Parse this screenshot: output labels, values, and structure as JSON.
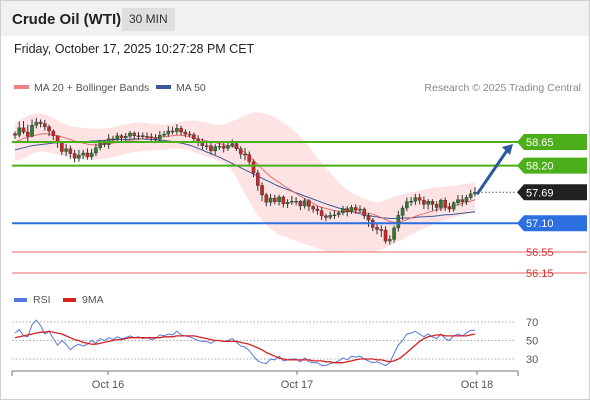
{
  "header": {
    "title": "Crude Oil (WTI)",
    "interval": "30 MIN"
  },
  "timestamp": "Friday, October 17, 2025 10:27:28 PM CET",
  "colors": {
    "bull_candle": "#2e7d32",
    "bear_candle": "#c62828",
    "ma20": "#e86a6a",
    "ma50": "#3a5a9c",
    "bollinger_fill": "#fde3e3",
    "resistance": "#4caf1a",
    "support_blue": "#2c6fe0",
    "support_red": "#e86a6a",
    "current_price_bg": "#222222",
    "arrow": "#2c5aa0",
    "rsi": "#5577dd",
    "rsi_ma": "#d62020"
  },
  "chart_data": [
    {
      "type": "candlestick",
      "legend": [
        {
          "label": "MA 20 + Bollinger Bands",
          "color": "#f08080"
        },
        {
          "label": "MA 50",
          "color": "#3a5a9c"
        }
      ],
      "attribution": "Research © 2025 Trading Central",
      "x_tick_labels": [
        "Oct 16",
        "Oct 17",
        "Oct 18"
      ],
      "ylim": [
        55.85,
        59.3
      ],
      "current_price": 57.69,
      "levels": [
        {
          "label": "58.65",
          "value": 58.65,
          "type": "resistance",
          "style": "green"
        },
        {
          "label": "58.20",
          "value": 58.2,
          "type": "resistance",
          "style": "green"
        },
        {
          "label": "57.10",
          "value": 57.1,
          "type": "support",
          "style": "blue"
        },
        {
          "label": "56.55",
          "value": 56.55,
          "type": "support",
          "style": "red"
        },
        {
          "label": "56.15",
          "value": 56.15,
          "type": "support",
          "style": "red"
        }
      ],
      "forecast_arrow": {
        "from": 57.65,
        "to": 58.65
      },
      "close": [
        58.78,
        58.92,
        58.84,
        58.76,
        58.97,
        59.03,
        59.0,
        58.94,
        58.86,
        58.77,
        58.63,
        58.47,
        58.52,
        58.43,
        58.34,
        58.4,
        58.44,
        58.37,
        58.44,
        58.54,
        58.63,
        58.6,
        58.71,
        58.7,
        58.77,
        58.73,
        58.76,
        58.82,
        58.77,
        58.77,
        58.76,
        58.75,
        58.73,
        58.7,
        58.78,
        58.8,
        58.86,
        58.85,
        58.91,
        58.84,
        58.8,
        58.79,
        58.71,
        58.65,
        58.58,
        58.58,
        58.48,
        58.56,
        58.57,
        58.53,
        58.58,
        58.62,
        58.52,
        58.42,
        58.41,
        58.27,
        58.06,
        57.82,
        57.64,
        57.5,
        57.58,
        57.51,
        57.6,
        57.47,
        57.5,
        57.52,
        57.52,
        57.43,
        57.53,
        57.42,
        57.37,
        57.34,
        57.24,
        57.21,
        57.25,
        57.26,
        57.3,
        57.38,
        57.32,
        57.4,
        57.35,
        57.37,
        57.24,
        57.16,
        57.02,
        56.98,
        56.97,
        56.76,
        56.79,
        57.01,
        57.25,
        57.39,
        57.51,
        57.52,
        57.59,
        57.54,
        57.46,
        57.52,
        57.46,
        57.4,
        57.54,
        57.41,
        57.37,
        57.49,
        57.55,
        57.51,
        57.59,
        57.66,
        57.69
      ],
      "high": [
        58.85,
        59.04,
        59.05,
        58.98,
        59.08,
        59.11,
        59.08,
        59.07,
        58.98,
        58.89,
        58.74,
        58.66,
        58.61,
        58.58,
        58.5,
        58.5,
        58.5,
        58.53,
        58.52,
        58.62,
        58.68,
        58.69,
        58.8,
        58.77,
        58.83,
        58.8,
        58.82,
        58.86,
        58.85,
        58.84,
        58.83,
        58.83,
        58.82,
        58.8,
        58.86,
        58.86,
        58.95,
        58.94,
        58.99,
        58.96,
        58.89,
        58.86,
        58.83,
        58.78,
        58.72,
        58.66,
        58.64,
        58.61,
        58.64,
        58.63,
        58.64,
        58.7,
        58.67,
        58.57,
        58.54,
        58.47,
        58.32,
        58.12,
        57.88,
        57.68,
        57.66,
        57.64,
        57.64,
        57.63,
        57.56,
        57.62,
        57.6,
        57.54,
        57.58,
        57.56,
        57.45,
        57.43,
        57.41,
        57.28,
        57.32,
        57.35,
        57.34,
        57.43,
        57.43,
        57.45,
        57.46,
        57.44,
        57.4,
        57.3,
        57.2,
        57.11,
        57.06,
        57.04,
        56.87,
        57.06,
        57.34,
        57.44,
        57.59,
        57.6,
        57.66,
        57.66,
        57.61,
        57.56,
        57.56,
        57.52,
        57.57,
        57.59,
        57.49,
        57.52,
        57.64,
        57.64,
        57.64,
        57.74,
        57.79
      ],
      "low": [
        58.71,
        58.74,
        58.8,
        58.67,
        58.74,
        58.91,
        58.93,
        58.87,
        58.76,
        58.69,
        58.54,
        58.4,
        58.38,
        58.33,
        58.26,
        58.27,
        58.32,
        58.31,
        58.31,
        58.38,
        58.49,
        58.55,
        58.52,
        58.64,
        58.66,
        58.64,
        58.67,
        58.7,
        58.7,
        58.69,
        58.7,
        58.72,
        58.64,
        58.63,
        58.64,
        58.74,
        58.75,
        58.79,
        58.79,
        58.78,
        58.74,
        58.74,
        58.66,
        58.57,
        58.51,
        58.5,
        58.41,
        58.4,
        58.5,
        58.45,
        58.48,
        58.54,
        58.48,
        58.33,
        58.3,
        58.18,
        57.98,
        57.72,
        57.52,
        57.42,
        57.43,
        57.46,
        57.44,
        57.4,
        57.39,
        57.45,
        57.44,
        57.35,
        57.38,
        57.33,
        57.3,
        57.26,
        57.16,
        57.14,
        57.17,
        57.18,
        57.21,
        57.25,
        57.23,
        57.28,
        57.28,
        57.3,
        57.18,
        57.03,
        56.95,
        56.89,
        56.84,
        56.71,
        56.69,
        56.73,
        56.94,
        57.16,
        57.33,
        57.43,
        57.45,
        57.46,
        57.37,
        57.36,
        57.34,
        57.32,
        57.33,
        57.33,
        57.31,
        57.32,
        57.44,
        57.42,
        57.45,
        57.55,
        57.61
      ],
      "ma20": [
        58.65,
        58.68,
        58.72,
        58.74,
        58.76,
        58.78,
        58.8,
        58.81,
        58.8,
        58.79,
        58.77,
        58.75,
        58.72,
        58.7,
        58.67,
        58.65,
        58.63,
        58.61,
        58.6,
        58.59,
        58.6,
        58.61,
        58.62,
        58.63,
        58.64,
        58.66,
        58.67,
        58.68,
        58.69,
        58.7,
        58.71,
        58.72,
        58.73,
        58.73,
        58.74,
        58.75,
        58.76,
        58.77,
        58.78,
        58.78,
        58.77,
        58.75,
        58.72,
        58.7,
        58.69,
        58.67,
        58.65,
        58.64,
        58.62,
        58.6,
        58.58,
        58.57,
        58.54,
        58.5,
        58.45,
        58.38,
        58.3,
        58.22,
        58.14,
        58.06,
        57.99,
        57.93,
        57.88,
        57.82,
        57.77,
        57.72,
        57.67,
        57.62,
        57.57,
        57.53,
        57.48,
        57.43,
        57.4,
        57.38,
        57.36,
        57.34,
        57.33,
        57.32,
        57.32,
        57.32,
        57.31,
        57.31,
        57.3,
        57.29,
        57.27,
        57.24,
        57.21,
        57.17,
        57.13,
        57.12,
        57.12,
        57.14,
        57.17,
        57.2,
        57.23,
        57.26,
        57.28,
        57.31,
        57.33,
        57.36,
        57.38,
        57.4,
        57.42,
        57.43,
        57.45,
        57.48,
        57.5,
        57.52,
        57.55
      ],
      "ma50": [
        58.5,
        58.52,
        58.54,
        58.56,
        58.58,
        58.59,
        58.6,
        58.61,
        58.62,
        58.63,
        58.64,
        58.64,
        58.64,
        58.65,
        58.65,
        58.65,
        58.66,
        58.66,
        58.67,
        58.67,
        58.68,
        58.68,
        58.69,
        58.69,
        58.7,
        58.7,
        58.7,
        58.7,
        58.71,
        58.71,
        58.71,
        58.7,
        58.7,
        58.69,
        58.68,
        58.68,
        58.67,
        58.66,
        58.64,
        58.63,
        58.61,
        58.59,
        58.56,
        58.53,
        58.5,
        58.46,
        58.43,
        58.39,
        58.36,
        58.32,
        58.28,
        58.24,
        58.2,
        58.16,
        58.12,
        58.08,
        58.04,
        58.0,
        57.96,
        57.92,
        57.88,
        57.84,
        57.8,
        57.77,
        57.74,
        57.71,
        57.68,
        57.65,
        57.62,
        57.59,
        57.56,
        57.53,
        57.5,
        57.47,
        57.44,
        57.42,
        57.39,
        57.37,
        57.35,
        57.32,
        57.3,
        57.28,
        57.26,
        57.25,
        57.23,
        57.22,
        57.2,
        57.2,
        57.19,
        57.19,
        57.19,
        57.2,
        57.2,
        57.2,
        57.21,
        57.22,
        57.22,
        57.23,
        57.23,
        57.24,
        57.25,
        57.26,
        57.26,
        57.27,
        57.28,
        57.29,
        57.3,
        57.31,
        57.32
      ],
      "boll_upper": [
        59.02,
        59.07,
        59.11,
        59.15,
        59.18,
        59.2,
        59.2,
        59.18,
        59.14,
        59.1,
        59.06,
        59.02,
        58.98,
        58.95,
        58.94,
        58.93,
        58.92,
        58.91,
        58.9,
        58.9,
        58.9,
        58.91,
        58.92,
        58.93,
        58.95,
        58.97,
        58.98,
        59.0,
        59.02,
        59.03,
        59.02,
        59.01,
        59.0,
        58.99,
        58.98,
        58.98,
        58.99,
        59.0,
        59.02,
        59.04,
        59.05,
        59.06,
        59.06,
        59.05,
        59.04,
        59.02,
        59.0,
        58.98,
        58.98,
        58.99,
        59.02,
        59.05,
        59.08,
        59.12,
        59.16,
        59.19,
        59.21,
        59.22,
        59.21,
        59.19,
        59.16,
        59.12,
        59.07,
        59.02,
        58.96,
        58.9,
        58.83,
        58.75,
        58.66,
        58.56,
        58.46,
        58.35,
        58.25,
        58.15,
        58.06,
        57.97,
        57.88,
        57.8,
        57.74,
        57.68,
        57.63,
        57.6,
        57.57,
        57.54,
        57.51,
        57.5,
        57.52,
        57.55,
        57.58,
        57.61,
        57.63,
        57.65,
        57.67,
        57.69,
        57.71,
        57.72,
        57.74,
        57.76,
        57.78,
        57.79,
        57.79,
        57.8,
        57.81,
        57.82,
        57.83,
        57.84,
        57.85,
        57.86,
        57.87
      ],
      "boll_lower": [
        58.28,
        58.3,
        58.34,
        58.38,
        58.42,
        58.45,
        58.47,
        58.46,
        58.45,
        58.43,
        58.41,
        58.4,
        58.38,
        58.36,
        58.34,
        58.33,
        58.32,
        58.32,
        58.32,
        58.32,
        58.32,
        58.33,
        58.34,
        58.36,
        58.38,
        58.4,
        58.42,
        58.44,
        58.46,
        58.47,
        58.48,
        58.48,
        58.49,
        58.49,
        58.5,
        58.5,
        58.51,
        58.52,
        58.53,
        58.52,
        58.51,
        58.49,
        58.46,
        58.43,
        58.4,
        58.37,
        58.34,
        58.31,
        58.28,
        58.25,
        58.19,
        58.1,
        57.97,
        57.82,
        57.66,
        57.51,
        57.38,
        57.26,
        57.16,
        57.07,
        56.99,
        56.93,
        56.88,
        56.85,
        56.82,
        56.79,
        56.76,
        56.73,
        56.7,
        56.68,
        56.65,
        56.62,
        56.59,
        56.57,
        56.56,
        56.56,
        56.56,
        56.56,
        56.57,
        56.57,
        56.57,
        56.57,
        56.56,
        56.55,
        56.55,
        56.57,
        56.6,
        56.63,
        56.67,
        56.71,
        56.75,
        56.79,
        56.84,
        56.88,
        56.92,
        56.96,
        57.0,
        57.03,
        57.07,
        57.1,
        57.13,
        57.16,
        57.19,
        57.21,
        57.23,
        57.25,
        57.27,
        57.28,
        57.3
      ]
    },
    {
      "type": "line",
      "legend": [
        {
          "label": "RSI",
          "color": "#5577dd"
        },
        {
          "label": "9MA",
          "color": "#d62020"
        }
      ],
      "y_tick_labels": [
        "70",
        "50",
        "30"
      ],
      "reference_levels": [
        70,
        50,
        30
      ],
      "ylim": [
        15,
        82
      ],
      "series": [
        {
          "name": "RSI",
          "values": [
            58,
            62,
            55,
            54,
            67,
            72,
            66,
            57,
            60,
            52,
            45,
            50,
            46,
            40,
            44,
            46,
            44,
            46,
            50,
            47,
            52,
            50,
            53,
            51,
            54,
            52,
            53,
            55,
            53,
            54,
            52,
            53,
            51,
            52,
            56,
            55,
            57,
            56,
            60,
            56,
            55,
            54,
            52,
            50,
            49,
            49,
            47,
            50,
            50,
            49,
            50,
            52,
            48,
            44,
            43,
            39,
            33,
            28,
            26,
            25,
            30,
            29,
            33,
            28,
            29,
            30,
            30,
            27,
            31,
            27,
            26,
            26,
            23,
            23,
            25,
            26,
            28,
            31,
            29,
            33,
            32,
            33,
            30,
            28,
            26,
            27,
            25,
            23,
            26,
            36,
            45,
            50,
            57,
            58,
            60,
            57,
            54,
            57,
            54,
            52,
            57,
            52,
            50,
            55,
            57,
            55,
            58,
            61,
            61
          ]
        },
        {
          "name": "9MA",
          "values": [
            53,
            54,
            55,
            56,
            57,
            58,
            59,
            59,
            60,
            59,
            58,
            57,
            55,
            53,
            51,
            50,
            48,
            47,
            46,
            46,
            47,
            48,
            49,
            50,
            51,
            51,
            52,
            53,
            53,
            53,
            53,
            53,
            53,
            53,
            53,
            54,
            54,
            54,
            55,
            55,
            55,
            55,
            55,
            54,
            53,
            52,
            51,
            50,
            50,
            49,
            49,
            49,
            49,
            48,
            47,
            46,
            44,
            42,
            40,
            37,
            35,
            33,
            31,
            30,
            29,
            29,
            29,
            29,
            29,
            29,
            28,
            28,
            28,
            27,
            27,
            26,
            26,
            26,
            27,
            28,
            29,
            30,
            30,
            30,
            30,
            29,
            29,
            28,
            27,
            28,
            30,
            33,
            37,
            41,
            45,
            49,
            52,
            54,
            55,
            56,
            56,
            55,
            55,
            55,
            55,
            55,
            55,
            56,
            57
          ]
        }
      ]
    }
  ]
}
